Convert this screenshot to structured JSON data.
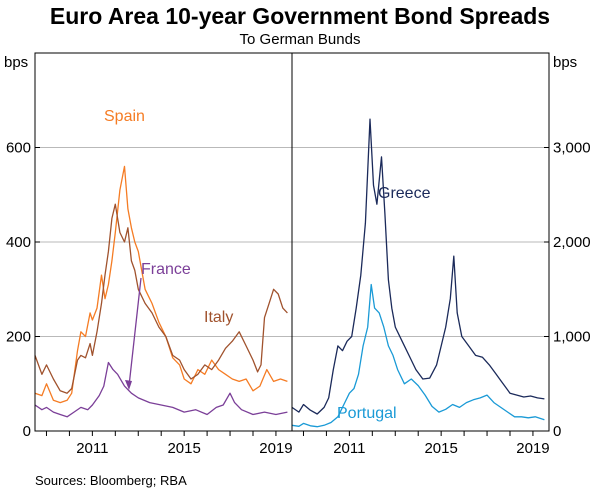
{
  "title": "Euro Area 10-year Government Bond Spreads",
  "subtitle": "To German Bunds",
  "source": "Sources: Bloomberg; RBA",
  "chart_data": [
    {
      "type": "line",
      "panel": "left",
      "unit_label": "bps",
      "ylim": [
        0,
        800
      ],
      "yticks": [
        0,
        200,
        400,
        600
      ],
      "ytick_labels": [
        "0",
        "200",
        "400",
        "600"
      ],
      "xlim": [
        2008.5,
        2019.7
      ],
      "xticks": [
        2011,
        2015,
        2019
      ],
      "xtick_labels": [
        "2011",
        "2015",
        "2019"
      ],
      "series": [
        {
          "name": "Spain",
          "color": "#f57c24",
          "x": [
            2008.5,
            2008.8,
            2009.0,
            2009.3,
            2009.6,
            2009.9,
            2010.1,
            2010.35,
            2010.5,
            2010.7,
            2010.9,
            2011.0,
            2011.2,
            2011.4,
            2011.55,
            2011.7,
            2011.85,
            2012.0,
            2012.2,
            2012.4,
            2012.55,
            2012.7,
            2012.85,
            2013.0,
            2013.3,
            2013.6,
            2013.9,
            2014.2,
            2014.5,
            2014.8,
            2015.0,
            2015.3,
            2015.6,
            2015.9,
            2016.2,
            2016.5,
            2016.8,
            2017.1,
            2017.4,
            2017.7,
            2018.0,
            2018.3,
            2018.6,
            2018.9,
            2019.2,
            2019.5
          ],
          "values": [
            80,
            75,
            100,
            65,
            60,
            65,
            80,
            170,
            210,
            200,
            250,
            235,
            260,
            330,
            280,
            310,
            360,
            420,
            510,
            560,
            470,
            430,
            400,
            380,
            300,
            270,
            230,
            200,
            155,
            140,
            110,
            100,
            130,
            120,
            150,
            130,
            120,
            110,
            105,
            110,
            85,
            95,
            130,
            105,
            110,
            105
          ]
        },
        {
          "name": "Italy",
          "color": "#a0522d",
          "x": [
            2008.5,
            2008.8,
            2009.0,
            2009.3,
            2009.6,
            2009.9,
            2010.1,
            2010.35,
            2010.5,
            2010.7,
            2010.9,
            2011.0,
            2011.2,
            2011.4,
            2011.55,
            2011.7,
            2011.85,
            2012.0,
            2012.2,
            2012.4,
            2012.55,
            2012.7,
            2012.85,
            2013.0,
            2013.3,
            2013.6,
            2013.9,
            2014.2,
            2014.5,
            2014.8,
            2015.0,
            2015.3,
            2015.6,
            2015.9,
            2016.2,
            2016.5,
            2016.8,
            2017.1,
            2017.4,
            2017.7,
            2018.0,
            2018.2,
            2018.35,
            2018.5,
            2018.7,
            2018.9,
            2019.1,
            2019.3,
            2019.5
          ],
          "values": [
            160,
            120,
            140,
            110,
            85,
            80,
            90,
            150,
            160,
            155,
            185,
            160,
            210,
            270,
            330,
            380,
            450,
            480,
            420,
            400,
            430,
            360,
            340,
            300,
            270,
            250,
            220,
            200,
            160,
            150,
            130,
            110,
            120,
            140,
            130,
            150,
            175,
            190,
            210,
            180,
            150,
            125,
            140,
            240,
            270,
            300,
            290,
            260,
            250
          ]
        },
        {
          "name": "France",
          "color": "#7b3f98",
          "x": [
            2008.5,
            2008.8,
            2009.0,
            2009.3,
            2009.6,
            2009.9,
            2010.2,
            2010.5,
            2010.8,
            2011.0,
            2011.3,
            2011.5,
            2011.7,
            2011.9,
            2012.1,
            2012.4,
            2012.7,
            2013.0,
            2013.5,
            2014.0,
            2014.5,
            2015.0,
            2015.5,
            2016.0,
            2016.4,
            2016.7,
            2017.0,
            2017.2,
            2017.5,
            2018.0,
            2018.5,
            2019.0,
            2019.5
          ],
          "values": [
            55,
            45,
            50,
            40,
            35,
            30,
            40,
            50,
            45,
            55,
            75,
            95,
            145,
            130,
            120,
            95,
            80,
            70,
            60,
            55,
            50,
            40,
            45,
            35,
            50,
            55,
            80,
            60,
            45,
            35,
            40,
            35,
            40
          ]
        }
      ],
      "annotations": [
        {
          "text": "Spain",
          "series": "Spain"
        },
        {
          "text": "France",
          "series": "France"
        },
        {
          "text": "Italy",
          "series": "Italy"
        }
      ]
    },
    {
      "type": "line",
      "panel": "right",
      "unit_label": "bps",
      "ylim": [
        0,
        4000
      ],
      "yticks": [
        0,
        1000,
        2000,
        3000
      ],
      "ytick_labels": [
        "0",
        "1,000",
        "2,000",
        "3,000"
      ],
      "xlim": [
        2008.5,
        2019.7
      ],
      "xticks": [
        2011,
        2015,
        2019
      ],
      "xtick_labels": [
        "2011",
        "2015",
        "2019"
      ],
      "series": [
        {
          "name": "Greece",
          "color": "#1b2a5a",
          "x": [
            2008.5,
            2008.8,
            2009.0,
            2009.3,
            2009.6,
            2009.9,
            2010.1,
            2010.3,
            2010.5,
            2010.7,
            2010.9,
            2011.1,
            2011.3,
            2011.5,
            2011.7,
            2011.9,
            2012.05,
            2012.2,
            2012.4,
            2012.55,
            2012.7,
            2012.85,
            2013.0,
            2013.3,
            2013.6,
            2013.9,
            2014.2,
            2014.5,
            2014.8,
            2015.0,
            2015.2,
            2015.4,
            2015.55,
            2015.7,
            2015.9,
            2016.2,
            2016.5,
            2016.8,
            2017.1,
            2017.4,
            2017.7,
            2018.0,
            2018.3,
            2018.6,
            2018.9,
            2019.2,
            2019.5
          ],
          "values": [
            250,
            200,
            280,
            220,
            180,
            250,
            350,
            650,
            900,
            850,
            950,
            1000,
            1300,
            1650,
            2200,
            3300,
            2600,
            2400,
            2900,
            2300,
            1600,
            1300,
            1100,
            950,
            800,
            650,
            550,
            560,
            700,
            900,
            1100,
            1400,
            1850,
            1250,
            1000,
            900,
            800,
            780,
            700,
            600,
            500,
            400,
            380,
            360,
            370,
            350,
            340
          ]
        },
        {
          "name": "Portugal",
          "color": "#1a9ad6",
          "x": [
            2008.5,
            2008.8,
            2009.0,
            2009.3,
            2009.6,
            2009.9,
            2010.2,
            2010.5,
            2010.8,
            2011.0,
            2011.2,
            2011.4,
            2011.6,
            2011.8,
            2011.95,
            2012.1,
            2012.3,
            2012.5,
            2012.7,
            2012.9,
            2013.1,
            2013.4,
            2013.7,
            2014.0,
            2014.3,
            2014.6,
            2014.9,
            2015.2,
            2015.5,
            2015.8,
            2016.1,
            2016.4,
            2016.7,
            2017.0,
            2017.3,
            2017.6,
            2017.9,
            2018.2,
            2018.5,
            2018.8,
            2019.1,
            2019.5
          ],
          "values": [
            60,
            50,
            80,
            55,
            45,
            60,
            90,
            150,
            300,
            400,
            450,
            600,
            900,
            1100,
            1550,
            1300,
            1250,
            1100,
            900,
            800,
            650,
            500,
            550,
            480,
            380,
            260,
            200,
            230,
            280,
            250,
            300,
            330,
            350,
            380,
            300,
            250,
            200,
            150,
            150,
            140,
            150,
            120
          ]
        }
      ],
      "annotations": [
        {
          "text": "Greece",
          "series": "Greece"
        },
        {
          "text": "Portugal",
          "series": "Portugal"
        }
      ]
    }
  ]
}
